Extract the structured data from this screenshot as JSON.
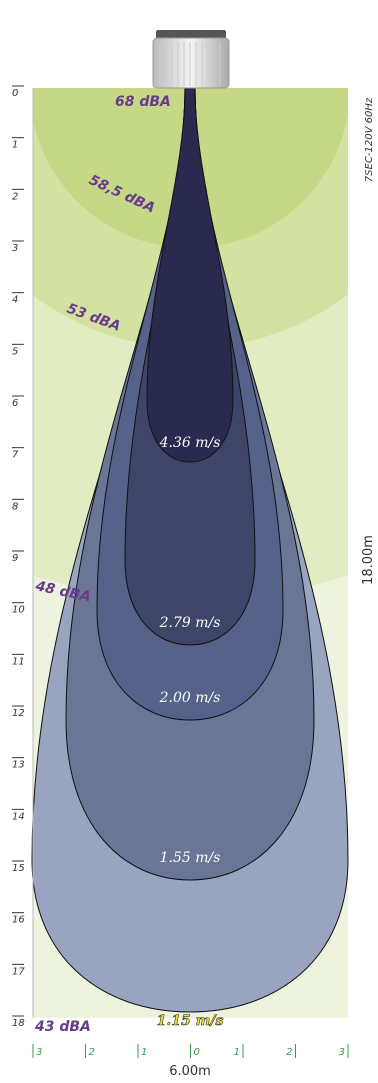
{
  "fixture_model": "7SEC-120V 60Hz",
  "height_label": "18.00m",
  "width_label": "6.00m",
  "depth_ticks": [
    0,
    1,
    2,
    3,
    4,
    5,
    6,
    7,
    8,
    9,
    10,
    11,
    12,
    13,
    14,
    15,
    16,
    17,
    18
  ],
  "width_ticks": [
    3,
    2,
    1,
    0,
    1,
    2,
    3
  ],
  "sound_levels": [
    "68 dBA",
    "58,5 dBA",
    "53 dBA",
    "48 dBA",
    "43 dBA"
  ],
  "velocities": [
    "4.36 m/s",
    "2.79 m/s",
    "2.00 m/s",
    "1.55 m/s",
    "1.15 m/s"
  ]
}
